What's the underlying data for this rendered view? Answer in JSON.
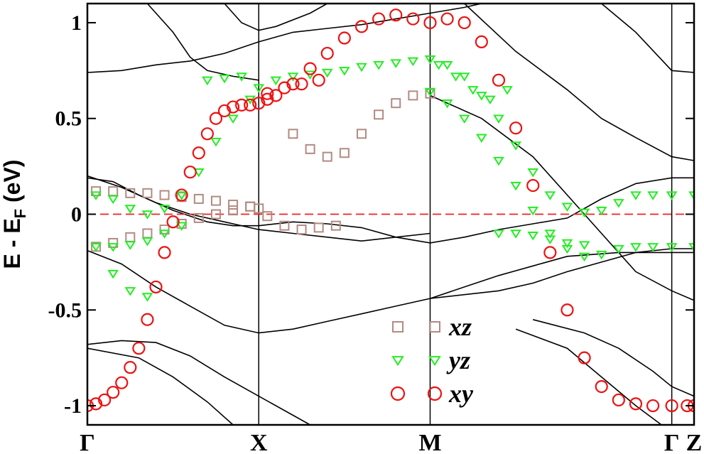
{
  "chart_data": {
    "type": "line",
    "title": "",
    "ylabel_main": "E - E",
    "ylabel_sub": "F",
    "ylabel_unit": " (eV)",
    "xlabel": "",
    "ylim": [
      -1.1,
      1.1
    ],
    "xlim": [
      0,
      3.54
    ],
    "yticks": [
      -1,
      -0.5,
      0,
      0.5,
      1
    ],
    "ytick_labels": [
      "-1",
      "-0.5",
      "0",
      "0.5",
      "1"
    ],
    "kpoints": [
      {
        "label": "Γ",
        "x": 0
      },
      {
        "label": "X",
        "x": 1
      },
      {
        "label": "M",
        "x": 2
      },
      {
        "label": "Γ",
        "x": 3.41
      },
      {
        "label": "Z",
        "x": 3.54
      }
    ],
    "fermi_level": 0,
    "fermi_color": "#ee2222",
    "band_color": "#000000",
    "bands": [
      [
        [
          0,
          0.19
        ],
        [
          0.15,
          0.17
        ],
        [
          0.3,
          0.1
        ],
        [
          0.5,
          0.02
        ],
        [
          0.7,
          -0.04
        ],
        [
          0.85,
          -0.06
        ],
        [
          1,
          -0.06
        ],
        [
          1.2,
          -0.04
        ],
        [
          1.4,
          -0.05
        ],
        [
          1.6,
          -0.07
        ],
        [
          1.8,
          -0.12
        ],
        [
          2,
          -0.15
        ],
        [
          2.2,
          -0.12
        ],
        [
          2.4,
          -0.08
        ],
        [
          2.6,
          -0.05
        ],
        [
          2.8,
          -0.02
        ],
        [
          3.0,
          0.08
        ],
        [
          3.2,
          0.16
        ],
        [
          3.41,
          0.19
        ],
        [
          3.54,
          0.19
        ]
      ],
      [
        [
          0,
          -0.19
        ],
        [
          0.2,
          -0.26
        ],
        [
          0.4,
          -0.38
        ],
        [
          0.6,
          -0.48
        ],
        [
          0.8,
          -0.58
        ],
        [
          1,
          -0.62
        ],
        [
          1.2,
          -0.6
        ],
        [
          1.4,
          -0.56
        ],
        [
          1.6,
          -0.52
        ],
        [
          1.8,
          -0.48
        ],
        [
          2,
          -0.44
        ],
        [
          2.2,
          -0.38
        ],
        [
          2.4,
          -0.32
        ],
        [
          2.6,
          -0.27
        ],
        [
          2.8,
          -0.22
        ],
        [
          3.1,
          -0.2
        ],
        [
          3.41,
          -0.2
        ],
        [
          3.54,
          -0.2
        ]
      ],
      [
        [
          0,
          -0.68
        ],
        [
          0.2,
          -0.66
        ],
        [
          0.4,
          -0.67
        ],
        [
          0.6,
          -0.74
        ],
        [
          0.8,
          -0.85
        ],
        [
          1,
          -0.95
        ],
        [
          1.2,
          -1.05
        ],
        [
          1.3,
          -1.1
        ]
      ],
      [
        [
          0,
          -0.7
        ],
        [
          0.3,
          -0.75
        ],
        [
          0.5,
          -0.85
        ],
        [
          0.7,
          -0.98
        ],
        [
          0.85,
          -1.1
        ]
      ],
      [
        [
          0,
          0.74
        ],
        [
          0.2,
          0.75
        ],
        [
          0.4,
          0.78
        ],
        [
          0.6,
          0.8
        ],
        [
          0.8,
          0.84
        ],
        [
          1,
          0.9
        ],
        [
          1.2,
          0.95
        ],
        [
          1.4,
          0.97
        ],
        [
          1.6,
          0.99
        ],
        [
          1.8,
          1.02
        ],
        [
          2,
          1.05
        ],
        [
          2.2,
          1.08
        ],
        [
          2.3,
          1.1
        ]
      ],
      [
        [
          0,
          0.2
        ],
        [
          0.2,
          0.14
        ],
        [
          0.4,
          0.06
        ],
        [
          0.6,
          0.0
        ],
        [
          0.8,
          -0.04
        ],
        [
          1,
          -0.08
        ],
        [
          1.2,
          -0.1
        ],
        [
          1.4,
          -0.12
        ],
        [
          1.6,
          -0.14
        ],
        [
          1.8,
          -0.12
        ],
        [
          2,
          -0.1
        ]
      ],
      [
        [
          2,
          -0.44
        ],
        [
          2.2,
          -0.42
        ],
        [
          2.4,
          -0.4
        ],
        [
          2.6,
          -0.36
        ],
        [
          2.8,
          -0.3
        ],
        [
          3.0,
          -0.25
        ],
        [
          3.2,
          -0.2
        ],
        [
          3.41,
          -0.18
        ],
        [
          3.54,
          -0.18
        ]
      ],
      [
        [
          2,
          0.62
        ],
        [
          2.3,
          0.5
        ],
        [
          2.6,
          0.3
        ],
        [
          2.8,
          0.1
        ],
        [
          3.0,
          -0.1
        ],
        [
          3.2,
          -0.3
        ],
        [
          3.41,
          -0.4
        ],
        [
          3.54,
          -0.45
        ]
      ],
      [
        [
          2.2,
          1.1
        ],
        [
          2.5,
          0.85
        ],
        [
          2.8,
          0.65
        ],
        [
          3.0,
          0.5
        ],
        [
          3.2,
          0.4
        ],
        [
          3.41,
          0.3
        ],
        [
          3.54,
          0.28
        ]
      ],
      [
        [
          3.0,
          1.1
        ],
        [
          3.2,
          0.95
        ],
        [
          3.41,
          0.75
        ],
        [
          3.54,
          0.74
        ]
      ],
      [
        [
          2.6,
          -0.55
        ],
        [
          2.9,
          -0.62
        ],
        [
          3.1,
          -0.7
        ],
        [
          3.3,
          -0.82
        ],
        [
          3.41,
          -0.9
        ],
        [
          3.54,
          -0.95
        ]
      ],
      [
        [
          2.5,
          -0.6
        ],
        [
          2.8,
          -0.7
        ],
        [
          3.0,
          -0.85
        ],
        [
          3.2,
          -1.0
        ],
        [
          3.35,
          -1.1
        ]
      ],
      [
        [
          0.35,
          1.1
        ],
        [
          0.5,
          0.95
        ],
        [
          0.6,
          0.82
        ],
        [
          0.7,
          0.75
        ],
        [
          0.85,
          0.72
        ],
        [
          1,
          0.7
        ]
      ],
      [
        [
          0.8,
          1.1
        ],
        [
          0.9,
          1.0
        ],
        [
          1,
          0.96
        ],
        [
          1.1,
          0.98
        ],
        [
          1.3,
          1.05
        ],
        [
          1.4,
          1.1
        ]
      ]
    ],
    "series": [
      {
        "name": "xz",
        "marker": "square",
        "color": "#b38a82",
        "points": [
          [
            0.05,
            0.12
          ],
          [
            0.15,
            0.12
          ],
          [
            0.25,
            0.11
          ],
          [
            0.35,
            0.11
          ],
          [
            0.45,
            0.1
          ],
          [
            0.55,
            0.09
          ],
          [
            0.65,
            0.08
          ],
          [
            0.75,
            0.07
          ],
          [
            0.85,
            0.05
          ],
          [
            0.95,
            0.04
          ],
          [
            1.0,
            0.03
          ],
          [
            1.05,
            -0.01
          ],
          [
            1.15,
            -0.06
          ],
          [
            1.25,
            -0.08
          ],
          [
            1.35,
            -0.07
          ],
          [
            1.45,
            -0.06
          ],
          [
            0.05,
            -0.17
          ],
          [
            0.15,
            -0.15
          ],
          [
            0.25,
            -0.12
          ],
          [
            0.35,
            -0.1
          ],
          [
            0.45,
            -0.08
          ],
          [
            0.55,
            -0.05
          ],
          [
            0.65,
            -0.02
          ],
          [
            0.75,
            0.0
          ],
          [
            0.85,
            0.02
          ],
          [
            0.95,
            0.04
          ],
          [
            1.2,
            0.42
          ],
          [
            1.3,
            0.34
          ],
          [
            1.4,
            0.3
          ],
          [
            1.5,
            0.32
          ],
          [
            1.6,
            0.42
          ],
          [
            1.7,
            0.52
          ],
          [
            1.8,
            0.58
          ],
          [
            1.9,
            0.62
          ],
          [
            2.0,
            0.63
          ]
        ]
      },
      {
        "name": "yz",
        "marker": "triangle-down",
        "color": "#22ee22",
        "points": [
          [
            0.05,
            0.1
          ],
          [
            0.15,
            0.08
          ],
          [
            0.25,
            0.03
          ],
          [
            0.35,
            0.0
          ],
          [
            0.45,
            0.03
          ],
          [
            0.55,
            0.1
          ],
          [
            0.65,
            0.22
          ],
          [
            0.75,
            0.38
          ],
          [
            0.85,
            0.5
          ],
          [
            0.95,
            0.6
          ],
          [
            1.0,
            0.66
          ],
          [
            1.1,
            0.7
          ],
          [
            1.2,
            0.72
          ],
          [
            1.3,
            0.73
          ],
          [
            1.4,
            0.74
          ],
          [
            1.5,
            0.75
          ],
          [
            1.6,
            0.77
          ],
          [
            1.7,
            0.78
          ],
          [
            1.8,
            0.79
          ],
          [
            1.9,
            0.8
          ],
          [
            2.0,
            0.81
          ],
          [
            2.1,
            0.78
          ],
          [
            2.2,
            0.72
          ],
          [
            2.3,
            0.62
          ],
          [
            2.4,
            0.5
          ],
          [
            2.5,
            0.36
          ],
          [
            2.6,
            0.22
          ],
          [
            2.7,
            0.1
          ],
          [
            2.8,
            0.04
          ],
          [
            2.9,
            0.01
          ],
          [
            3.0,
            0.02
          ],
          [
            3.1,
            0.06
          ],
          [
            3.2,
            0.1
          ],
          [
            3.3,
            0.1
          ],
          [
            3.41,
            0.1
          ],
          [
            3.54,
            0.1
          ],
          [
            0.05,
            -0.17
          ],
          [
            0.15,
            -0.17
          ],
          [
            0.25,
            -0.16
          ],
          [
            0.35,
            -0.14
          ],
          [
            0.45,
            -0.1
          ],
          [
            0.55,
            -0.06
          ],
          [
            0.15,
            -0.31
          ],
          [
            0.25,
            -0.4
          ],
          [
            0.35,
            -0.43
          ],
          [
            0.7,
            0.7
          ],
          [
            0.8,
            0.71
          ],
          [
            0.9,
            0.72
          ],
          [
            2.0,
            0.64
          ],
          [
            2.1,
            0.58
          ],
          [
            2.2,
            0.5
          ],
          [
            2.3,
            0.4
          ],
          [
            2.4,
            0.28
          ],
          [
            2.5,
            0.15
          ],
          [
            2.6,
            0.02
          ],
          [
            2.7,
            -0.1
          ],
          [
            2.8,
            -0.18
          ],
          [
            2.9,
            -0.22
          ],
          [
            3.0,
            -0.21
          ],
          [
            3.1,
            -0.18
          ],
          [
            3.2,
            -0.17
          ],
          [
            3.3,
            -0.17
          ],
          [
            3.41,
            -0.17
          ],
          [
            3.54,
            -0.17
          ],
          [
            2.4,
            -0.1
          ],
          [
            2.5,
            -0.1
          ],
          [
            2.6,
            -0.11
          ],
          [
            2.7,
            -0.13
          ],
          [
            2.8,
            -0.15
          ],
          [
            2.9,
            -0.16
          ],
          [
            2.05,
            0.78
          ],
          [
            2.15,
            0.72
          ],
          [
            2.25,
            0.65
          ],
          [
            2.35,
            0.6
          ],
          [
            2.45,
            0.65
          ]
        ]
      },
      {
        "name": "xy",
        "marker": "circle",
        "color": "#ee1111",
        "points": [
          [
            0.0,
            -1.0
          ],
          [
            0.05,
            -0.99
          ],
          [
            0.1,
            -0.97
          ],
          [
            0.15,
            -0.93
          ],
          [
            0.2,
            -0.88
          ],
          [
            0.25,
            -0.8
          ],
          [
            0.3,
            -0.7
          ],
          [
            0.35,
            -0.55
          ],
          [
            0.4,
            -0.38
          ],
          [
            0.45,
            -0.2
          ],
          [
            0.5,
            -0.04
          ],
          [
            0.55,
            0.1
          ],
          [
            0.6,
            0.22
          ],
          [
            0.65,
            0.32
          ],
          [
            0.7,
            0.42
          ],
          [
            0.75,
            0.5
          ],
          [
            0.8,
            0.54
          ],
          [
            0.85,
            0.56
          ],
          [
            0.9,
            0.57
          ],
          [
            0.95,
            0.57
          ],
          [
            1.0,
            0.58
          ],
          [
            1.05,
            0.6
          ],
          [
            1.1,
            0.62
          ],
          [
            1.2,
            0.68
          ],
          [
            1.3,
            0.76
          ],
          [
            1.4,
            0.84
          ],
          [
            1.5,
            0.92
          ],
          [
            1.6,
            0.98
          ],
          [
            1.7,
            1.02
          ],
          [
            1.8,
            1.04
          ],
          [
            1.9,
            1.02
          ],
          [
            2.0,
            1.0
          ],
          [
            2.1,
            1.02
          ],
          [
            2.2,
            1.0
          ],
          [
            2.3,
            0.9
          ],
          [
            2.4,
            0.7
          ],
          [
            2.5,
            0.45
          ],
          [
            2.6,
            0.15
          ],
          [
            2.7,
            -0.2
          ],
          [
            2.8,
            -0.5
          ],
          [
            2.9,
            -0.75
          ],
          [
            3.0,
            -0.9
          ],
          [
            3.1,
            -0.97
          ],
          [
            3.2,
            -0.99
          ],
          [
            3.3,
            -1.0
          ],
          [
            3.41,
            -1.0
          ],
          [
            3.5,
            -1.0
          ],
          [
            3.54,
            -1.0
          ],
          [
            1.05,
            0.63
          ],
          [
            1.15,
            0.66
          ],
          [
            1.25,
            0.68
          ],
          [
            1.35,
            0.7
          ]
        ]
      }
    ],
    "legend": {
      "placement": "bottom-center",
      "entries": [
        "xz",
        "yz",
        "xy"
      ]
    }
  }
}
